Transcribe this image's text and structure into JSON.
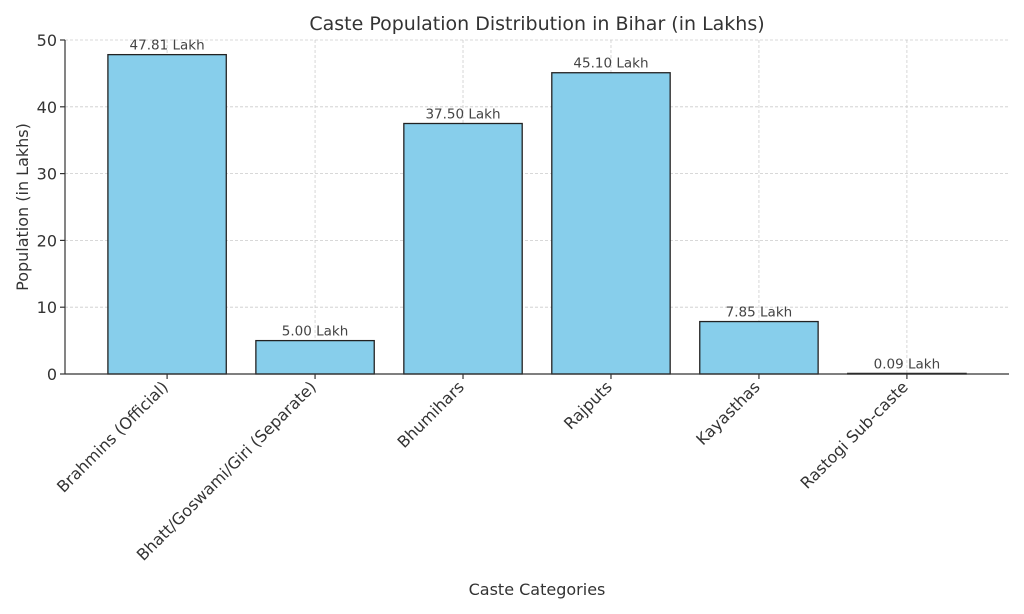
{
  "chart_data": {
    "type": "bar",
    "title": "Caste Population Distribution in Bihar (in Lakhs)",
    "xlabel": "Caste Categories",
    "ylabel": "Population (in Lakhs)",
    "categories": [
      "Brahmins (Official)",
      "Bhatt/Goswami/Giri (Separate)",
      "Bhumihars",
      "Rajputs",
      "Kayasthas",
      "Rastogi Sub-caste"
    ],
    "values": [
      47.81,
      5.0,
      37.5,
      45.1,
      7.85,
      0.09
    ],
    "data_labels": [
      "47.81 Lakh",
      "5.00 Lakh",
      "37.50 Lakh",
      "45.10 Lakh",
      "7.85 Lakh",
      "0.09 Lakh"
    ],
    "ylim": [
      0,
      50.2
    ],
    "yticks": [
      0,
      10,
      20,
      30,
      40,
      50
    ],
    "ytick_labels": [
      "0",
      "10",
      "20",
      "30",
      "40",
      "50"
    ],
    "grid": true,
    "legend": "none",
    "bar_color": "#87ceeb",
    "edge_color": "#222222"
  }
}
